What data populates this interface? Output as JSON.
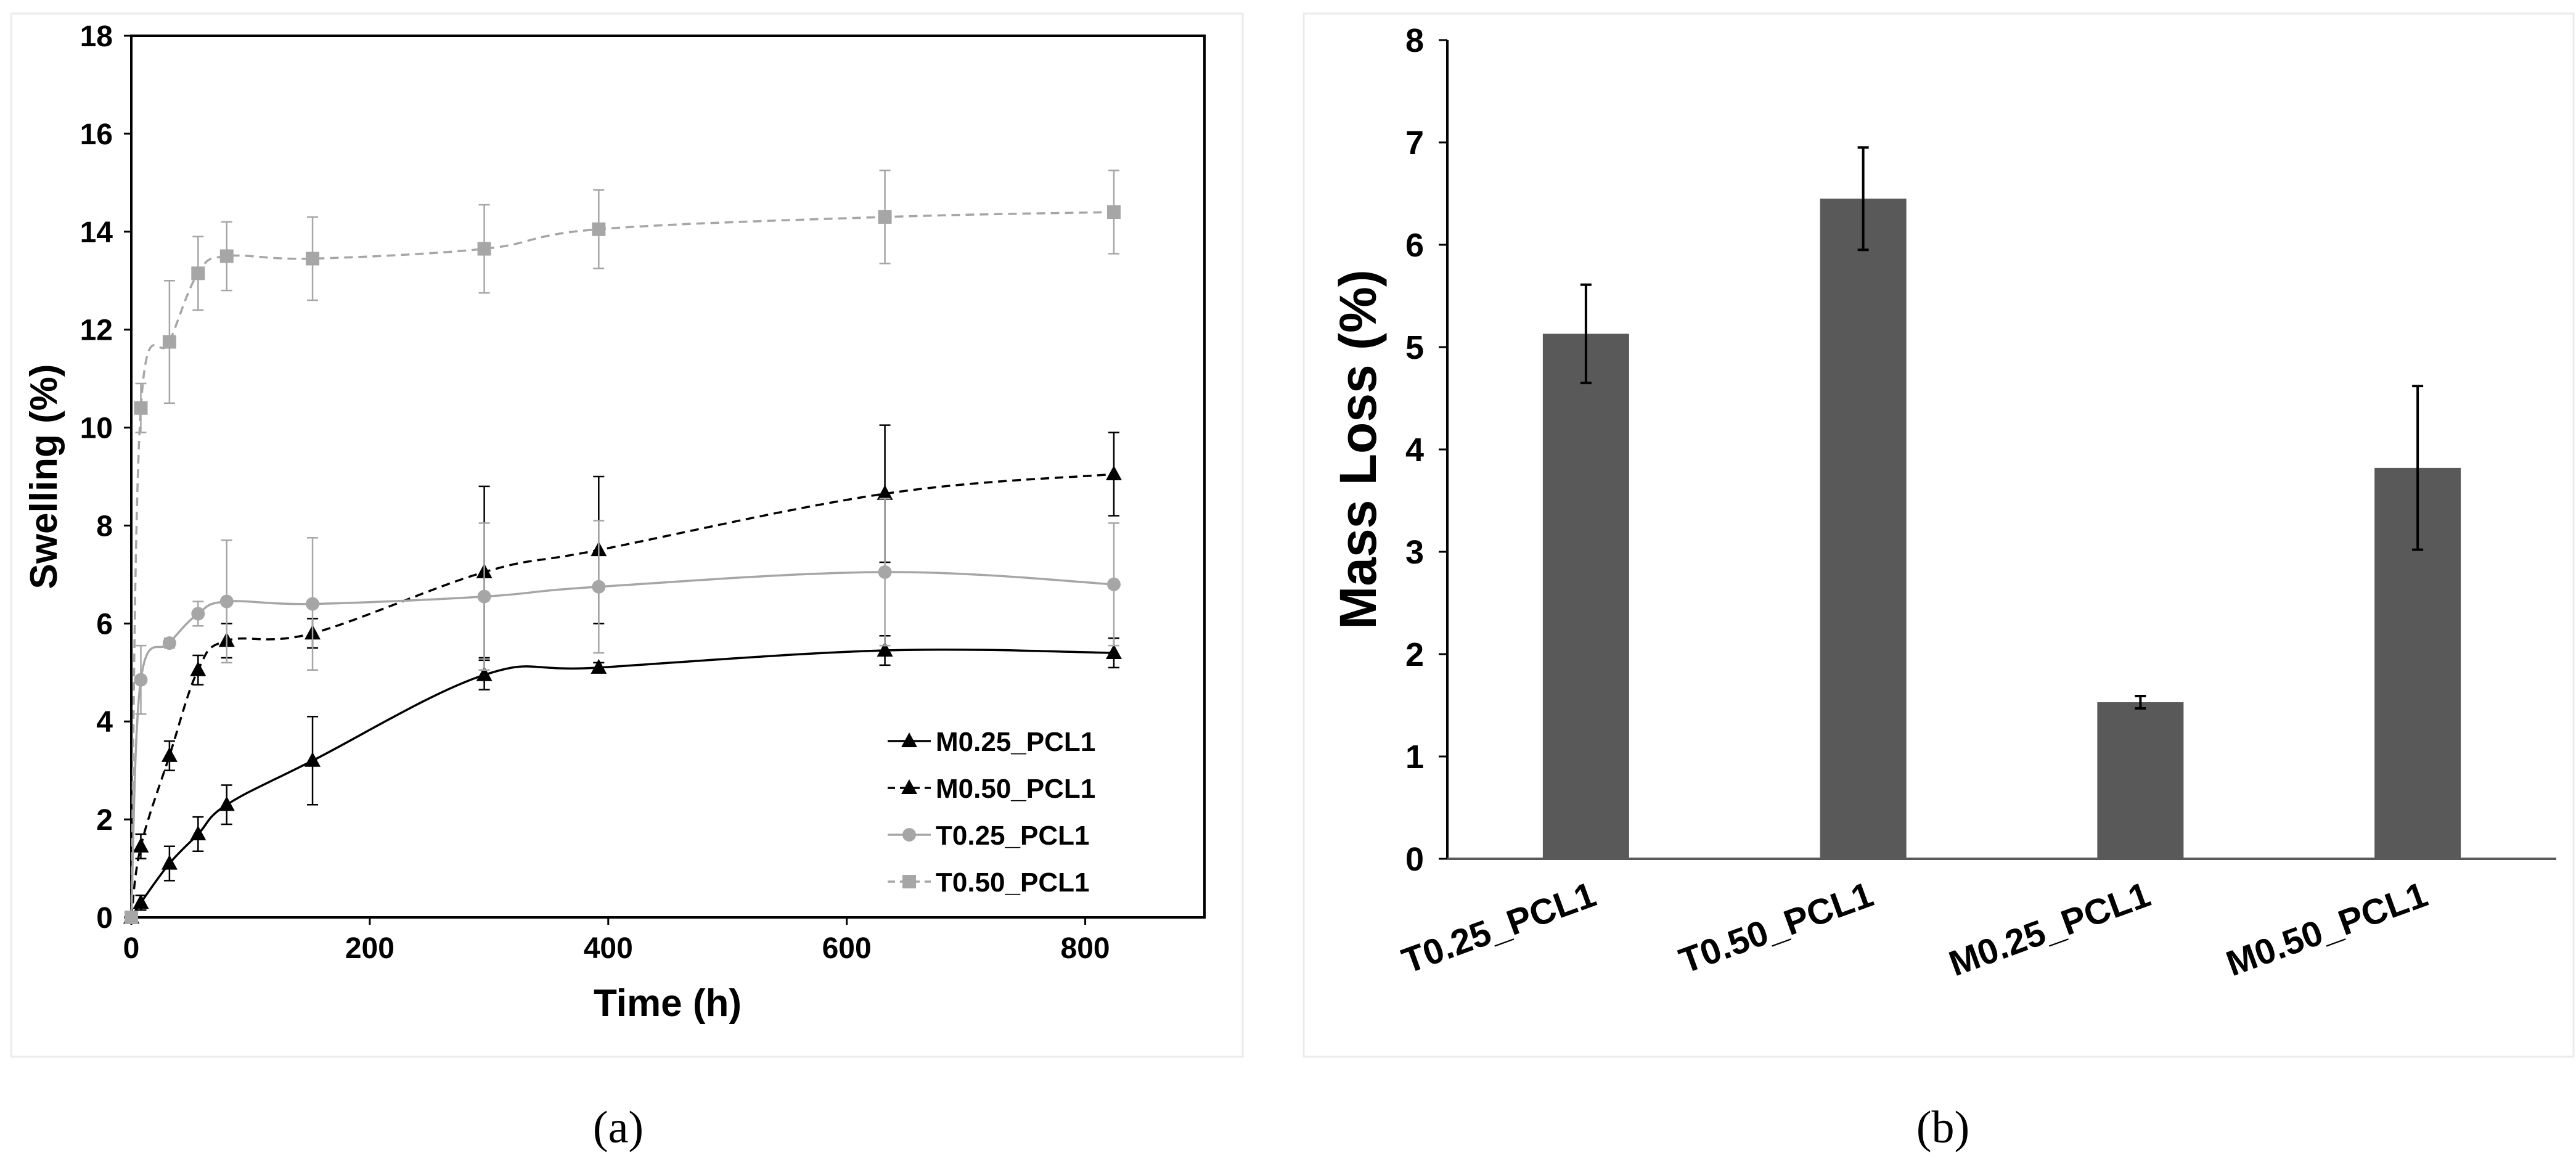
{
  "captions": [
    "(a)",
    "(b)"
  ],
  "chart_data": [
    {
      "type": "line",
      "panel": "a",
      "title": "",
      "xlabel": "Time (h)",
      "ylabel": "Swelling (%)",
      "xlim": [
        0,
        900
      ],
      "ylim": [
        0,
        18
      ],
      "xticks": [
        0,
        200,
        400,
        600,
        800
      ],
      "yticks": [
        0,
        2,
        4,
        6,
        8,
        10,
        12,
        14,
        16,
        18
      ],
      "grid": false,
      "legend_position": "bottom-right",
      "series": [
        {
          "name": "M0.25_PCL1",
          "color": "#000000",
          "marker": "triangle",
          "dash": "solid",
          "x": [
            0,
            8,
            32,
            56,
            80,
            152,
            296,
            392,
            632,
            824
          ],
          "y": [
            0,
            0.3,
            1.1,
            1.7,
            2.3,
            3.2,
            4.95,
            5.1,
            5.45,
            5.4
          ],
          "err": [
            0,
            0.15,
            0.35,
            0.35,
            0.4,
            0.9,
            0.3,
            0.1,
            0.3,
            0.3
          ]
        },
        {
          "name": "M0.50_PCL1",
          "color": "#000000",
          "marker": "triangle",
          "dash": "dashed",
          "x": [
            0,
            8,
            32,
            56,
            80,
            152,
            296,
            392,
            632,
            824
          ],
          "y": [
            0,
            1.45,
            3.3,
            5.05,
            5.65,
            5.8,
            7.05,
            7.5,
            8.65,
            9.05
          ],
          "err": [
            0,
            0.25,
            0.3,
            0.3,
            0.35,
            0.3,
            1.75,
            1.5,
            1.4,
            0.85
          ]
        },
        {
          "name": "T0.25_PCL1",
          "color": "#a6a6a6",
          "marker": "circle",
          "dash": "solid",
          "x": [
            0,
            8,
            32,
            56,
            80,
            152,
            296,
            392,
            632,
            824
          ],
          "y": [
            0,
            4.85,
            5.6,
            6.2,
            6.45,
            6.4,
            6.55,
            6.75,
            7.05,
            6.8
          ],
          "err": [
            0,
            0.7,
            0.1,
            0.25,
            1.25,
            1.35,
            1.5,
            1.35,
            1.5,
            1.25
          ]
        },
        {
          "name": "T0.50_PCL1",
          "color": "#a6a6a6",
          "marker": "square",
          "dash": "dashed",
          "x": [
            0,
            8,
            32,
            56,
            80,
            152,
            296,
            392,
            632,
            824
          ],
          "y": [
            0,
            10.4,
            11.75,
            13.15,
            13.5,
            13.45,
            13.65,
            14.05,
            14.3,
            14.4
          ],
          "err": [
            0,
            0.5,
            1.25,
            0.75,
            0.7,
            0.85,
            0.9,
            0.8,
            0.95,
            0.85
          ]
        }
      ]
    },
    {
      "type": "bar",
      "panel": "b",
      "title": "",
      "xlabel": "",
      "ylabel": "Mass Loss (%)",
      "ylim": [
        0,
        8
      ],
      "yticks": [
        0,
        1,
        2,
        3,
        4,
        5,
        6,
        7,
        8
      ],
      "grid": false,
      "bar_color": "#595959",
      "categories": [
        "T0.25_PCL1",
        "T0.50_PCL1",
        "M0.25_PCL1",
        "M0.50_PCL1"
      ],
      "values": [
        5.13,
        6.45,
        1.53,
        3.82
      ],
      "errors": [
        0.48,
        0.5,
        0.06,
        0.8
      ]
    }
  ]
}
